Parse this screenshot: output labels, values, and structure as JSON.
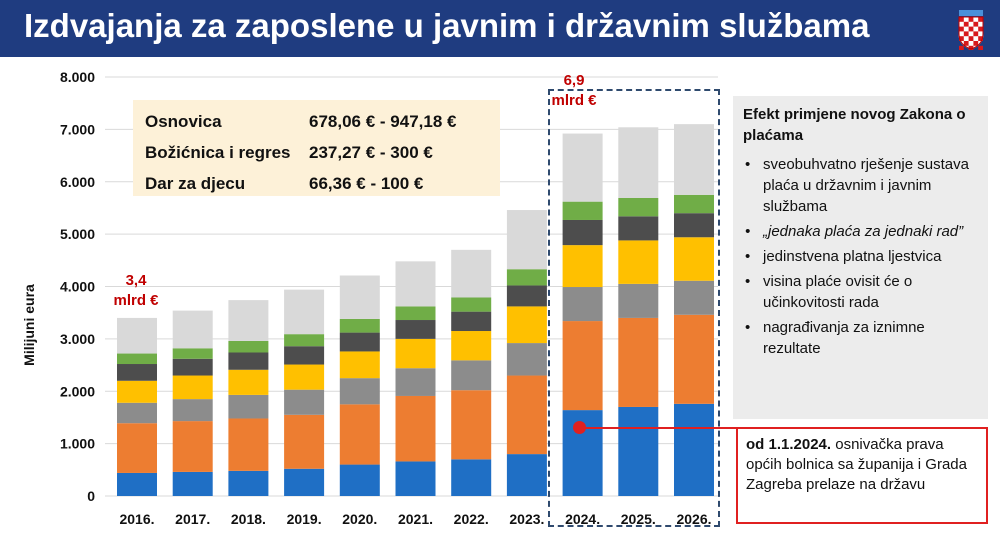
{
  "header": {
    "title": "Izdvajanja za zaposlene u javnim i državnim službama",
    "background": "#1f3c80"
  },
  "info_box": {
    "rows": [
      {
        "label": "Osnovica",
        "value": "678,06 € - 947,18 €"
      },
      {
        "label": "Božićnica i regres",
        "value": "237,27 € - 300 €"
      },
      {
        "label": "Dar za djecu",
        "value": "66,36 € - 100 €"
      }
    ]
  },
  "callouts": {
    "left": {
      "line1": "3,4",
      "line2": "mlrd €"
    },
    "right": {
      "line1": "6,9",
      "line2": "mlrd €"
    }
  },
  "effect": {
    "title": "Efekt primjene novog Zakona o plaćama",
    "items": [
      "sveobuhvatno rješenje sustava plaća u državnim i javnim službama",
      "„jednaka plaća za jednaki rad”",
      "jedinstvena platna ljestvica",
      "visina plaće ovisit će o učinkovitosti rada",
      "nagrađivanja za iznimne rezultate"
    ]
  },
  "note": {
    "bold": "od 1.1.2024.",
    "text": " osnivačka prava općih bolnica sa županija i Grada Zagreba prelaze na državu"
  },
  "chart_data": {
    "type": "bar",
    "stacked": true,
    "ylabel": "Milijuni eura",
    "ylim": [
      0,
      8000
    ],
    "yticks": [
      0,
      1000,
      2000,
      3000,
      4000,
      5000,
      6000,
      7000,
      8000
    ],
    "ytick_labels": [
      "0",
      "1.000",
      "2.000",
      "3.000",
      "4.000",
      "5.000",
      "6.000",
      "7.000",
      "8.000"
    ],
    "grid": true,
    "categories": [
      "2016.",
      "2017.",
      "2018.",
      "2019.",
      "2020.",
      "2021.",
      "2022.",
      "2023.",
      "2024.",
      "2025.",
      "2026."
    ],
    "series": [
      {
        "color": "#1f6fc5",
        "values": [
          440,
          460,
          480,
          520,
          600,
          660,
          700,
          800,
          1640,
          1700,
          1760
        ]
      },
      {
        "color": "#ed7d31",
        "values": [
          950,
          970,
          1000,
          1030,
          1150,
          1250,
          1320,
          1500,
          1700,
          1700,
          1700
        ]
      },
      {
        "color": "#8c8c8c",
        "values": [
          390,
          420,
          450,
          480,
          500,
          530,
          570,
          620,
          650,
          650,
          650
        ]
      },
      {
        "color": "#ffc000",
        "values": [
          420,
          450,
          480,
          480,
          510,
          560,
          560,
          700,
          800,
          830,
          830
        ]
      },
      {
        "color": "#4d4d4d",
        "values": [
          320,
          320,
          330,
          350,
          360,
          360,
          370,
          400,
          480,
          460,
          460
        ]
      },
      {
        "color": "#70ad47",
        "values": [
          200,
          200,
          220,
          230,
          260,
          260,
          270,
          310,
          350,
          350,
          350
        ]
      },
      {
        "color": "#d9d9d9",
        "values": [
          680,
          720,
          780,
          850,
          830,
          860,
          910,
          1130,
          1300,
          1350,
          1350
        ]
      }
    ]
  }
}
